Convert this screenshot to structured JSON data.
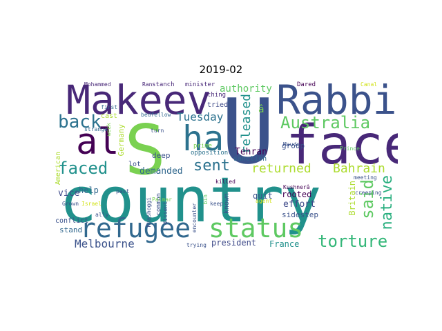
{
  "title": "2019-02",
  "words": [
    {
      "text": "country",
      "color": "#21918c"
    },
    {
      "text": "S",
      "color": "#7ad151"
    },
    {
      "text": "U",
      "color": "#3b528b"
    },
    {
      "text": "face",
      "color": "#482878"
    },
    {
      "text": "Makeev",
      "color": "#482878"
    },
    {
      "text": "Rabbi",
      "color": "#3b528b"
    },
    {
      "text": "ha",
      "color": "#2c728e"
    },
    {
      "text": "al",
      "color": "#440154"
    },
    {
      "text": "refugee",
      "color": "#31688e"
    },
    {
      "text": "status",
      "color": "#5ec962"
    },
    {
      "text": "Australia",
      "color": "#5ec962"
    },
    {
      "text": "back",
      "color": "#2c728e"
    },
    {
      "text": "faced",
      "color": "#21918c"
    },
    {
      "text": "sent",
      "color": "#2c728e"
    },
    {
      "text": "torture",
      "color": "#35b779"
    },
    {
      "text": "said",
      "color": "#5ec962"
    },
    {
      "text": "native",
      "color": "#29af7f"
    },
    {
      "text": "released",
      "color": "#21918c"
    },
    {
      "text": "Bahrain",
      "color": "#addc30"
    },
    {
      "text": "returned",
      "color": "#addc30"
    },
    {
      "text": "Tuesday",
      "color": "#2c728e"
    },
    {
      "text": "Melbourne",
      "color": "#3b528b"
    },
    {
      "text": "authority",
      "color": "#5ec962"
    },
    {
      "text": "demanded",
      "color": "#31688e"
    },
    {
      "text": "Tehran",
      "color": "#440154"
    },
    {
      "text": "help",
      "color": "#31688e"
    },
    {
      "text": "quit",
      "color": "#3b528b"
    },
    {
      "text": "effort",
      "color": "#3e4a89"
    },
    {
      "text": "president",
      "color": "#3e4a89"
    },
    {
      "text": "France",
      "color": "#21918c"
    },
    {
      "text": "rooted",
      "color": "#440154"
    },
    {
      "text": "Britain",
      "color": "#addc30"
    },
    {
      "text": "vice",
      "color": "#3e4a89"
    },
    {
      "text": "Germany",
      "color": "#addc30"
    },
    {
      "text": "sidestep",
      "color": "#3b528b"
    },
    {
      "text": "stand",
      "color": "#31688e"
    },
    {
      "text": "group",
      "color": "#3b528b"
    },
    {
      "text": "conflict",
      "color": "#3b528b"
    },
    {
      "text": "tried",
      "color": "#3e4a89"
    },
    {
      "text": "deep",
      "color": "#3b528b"
    },
    {
      "text": "lot",
      "color": "#3b528b"
    },
    {
      "text": "sanction",
      "color": "#31688e"
    },
    {
      "text": "known",
      "color": "#3b528b"
    },
    {
      "text": "opposition",
      "color": "#2c728e"
    },
    {
      "text": "prime",
      "color": "#7ad151"
    },
    {
      "text": "American",
      "color": "#addc30"
    },
    {
      "text": "stanch",
      "color": "#482878"
    },
    {
      "text": "minister",
      "color": "#482878"
    },
    {
      "text": "Ran",
      "color": "#482878"
    },
    {
      "text": "Mohammed",
      "color": "#482878"
    },
    {
      "text": "thing",
      "color": "#482878"
    },
    {
      "text": "Dared",
      "color": "#440154"
    },
    {
      "text": "Canal",
      "color": "#d2e21b"
    },
    {
      "text": "cast",
      "color": "#addc30"
    },
    {
      "text": "first",
      "color": "#31688e"
    },
    {
      "text": "bedfellow",
      "color": "#31688e"
    },
    {
      "text": "turn",
      "color": "#3b528b"
    },
    {
      "text": "strange",
      "color": "#31688e"
    },
    {
      "text": "Maude",
      "color": "#3b528b"
    },
    {
      "text": "Prince",
      "color": "#5ec962"
    },
    {
      "text": "Kushnerâ",
      "color": "#440154"
    },
    {
      "text": "killed",
      "color": "#440154"
    },
    {
      "text": "common",
      "color": "#3b528b"
    },
    {
      "text": "dissent",
      "color": "#3b528b"
    },
    {
      "text": "encounter",
      "color": "#3b528b"
    },
    {
      "text": "Khashoggi",
      "color": "#3b528b"
    },
    {
      "text": "Grown",
      "color": "#3b528b"
    },
    {
      "text": "Israel",
      "color": "#d2e21b"
    },
    {
      "text": "ally",
      "color": "#3b528b"
    },
    {
      "text": "past",
      "color": "#3b528b"
    },
    {
      "text": "Palmar",
      "color": "#7ad151"
    },
    {
      "text": "bin",
      "color": "#5ec962"
    },
    {
      "text": "keep",
      "color": "#3b528b"
    },
    {
      "text": "trying",
      "color": "#3b528b"
    },
    {
      "text": "agent",
      "color": "#d2e21b"
    },
    {
      "text": "meeting",
      "color": "#3b528b"
    },
    {
      "text": "creeping",
      "color": "#3b528b"
    },
    {
      "text": "week",
      "color": "#7ad151"
    },
    {
      "text": "â",
      "color": "#7ad151"
    }
  ]
}
